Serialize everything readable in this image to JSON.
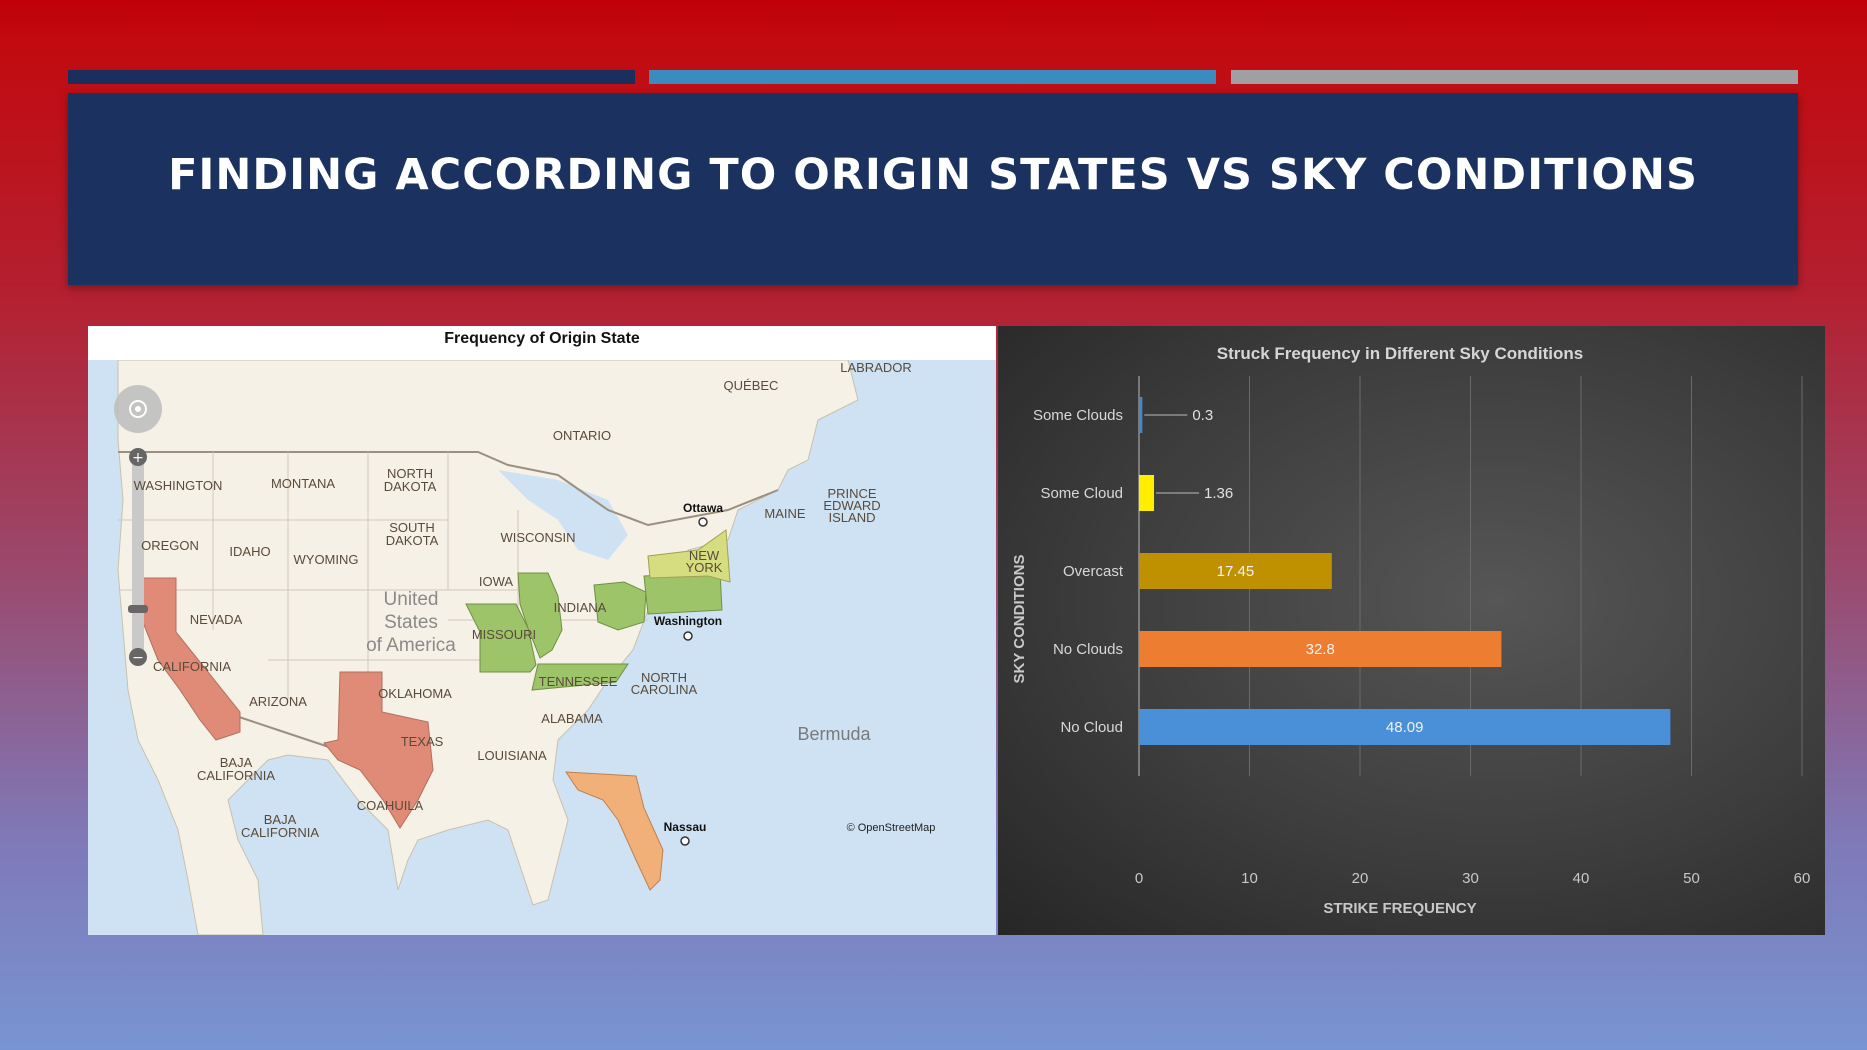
{
  "slide": {
    "title": "FINDING ACCORDING TO ORIGIN STATES VS SKY CONDITIONS",
    "colors": {
      "title_bg": "#1b3160",
      "accent_bar_1": "#1b2f5e",
      "accent_bar_2": "#3a8cc0",
      "accent_bar_3": "#a0a0a4"
    }
  },
  "map": {
    "title": "Frequency of Origin State",
    "attribution": "© OpenStreetMap",
    "country_label": [
      "United",
      "States",
      "of America"
    ],
    "region_labels": {
      "washington": "WASHINGTON",
      "montana": "MONTANA",
      "north_dakota": [
        "NORTH",
        "DAKOTA"
      ],
      "south_dakota": [
        "SOUTH",
        "DAKOTA"
      ],
      "oregon": "OREGON",
      "idaho": "IDAHO",
      "wyoming": "WYOMING",
      "nevada": "NEVADA",
      "california": "CALIFORNIA",
      "arizona": "ARIZONA",
      "oklahoma": "OKLAHOMA",
      "texas": "TEXAS",
      "iowa": "IOWA",
      "wisconsin": "WISCONSIN",
      "missouri": "MISSOURI",
      "indiana": "INDIANA",
      "tennessee": "TENNESSEE",
      "alabama": "ALABAMA",
      "louisiana": "LOUISIANA",
      "north_carolina": [
        "NORTH",
        "CAROLINA"
      ],
      "new_york": [
        "NEW",
        "YORK"
      ],
      "maine": "MAINE",
      "prince_edward_island": [
        "PRINCE",
        "EDWARD",
        "ISLAND"
      ],
      "ontario": "ONTARIO",
      "quebec": "QUÉBEC",
      "labrador": "LABRADOR",
      "baja_california": [
        "BAJA",
        "CALIFORNIA"
      ],
      "coahuila": "COAHUILA",
      "baja_california_sur": [
        "BAJA",
        "CALIFORNIA"
      ],
      "bermuda": "Bermuda"
    },
    "cities": {
      "ottawa": "Ottawa",
      "washington": "Washington",
      "nassau": "Nassau"
    },
    "highlighted_states": [
      {
        "name": "California",
        "color": "#e08a78"
      },
      {
        "name": "Texas",
        "color": "#e08a78"
      },
      {
        "name": "Florida",
        "color": "#f0b078"
      },
      {
        "name": "Missouri",
        "color": "#9ec46a"
      },
      {
        "name": "Illinois",
        "color": "#9ec46a"
      },
      {
        "name": "Tennessee",
        "color": "#9ec46a"
      },
      {
        "name": "Ohio",
        "color": "#9ec46a"
      },
      {
        "name": "Pennsylvania",
        "color": "#9ec46a"
      },
      {
        "name": "New York",
        "color": "#d6dd80"
      }
    ]
  },
  "chart_data": {
    "type": "bar",
    "orientation": "horizontal",
    "title": "Struck Frequency in Different Sky Conditions",
    "xlabel": "STRIKE FREQUENCY",
    "ylabel": "SKY CONDITIONS",
    "categories": [
      "Some Clouds",
      "Some Cloud",
      "Overcast",
      "No Clouds",
      "No Cloud"
    ],
    "values": [
      0.3,
      1.36,
      17.45,
      32.8,
      48.09
    ],
    "data_labels": [
      "0.3",
      "1.36",
      "17.45",
      "32.8",
      "48.09"
    ],
    "colors": [
      "#4a86c8",
      "#ffee00",
      "#bf9000",
      "#ed7d31",
      "#4a90d8"
    ],
    "xlim": [
      0,
      60
    ],
    "xticks": [
      0,
      10,
      20,
      30,
      40,
      50,
      60
    ],
    "grid": true,
    "legend": "none"
  }
}
